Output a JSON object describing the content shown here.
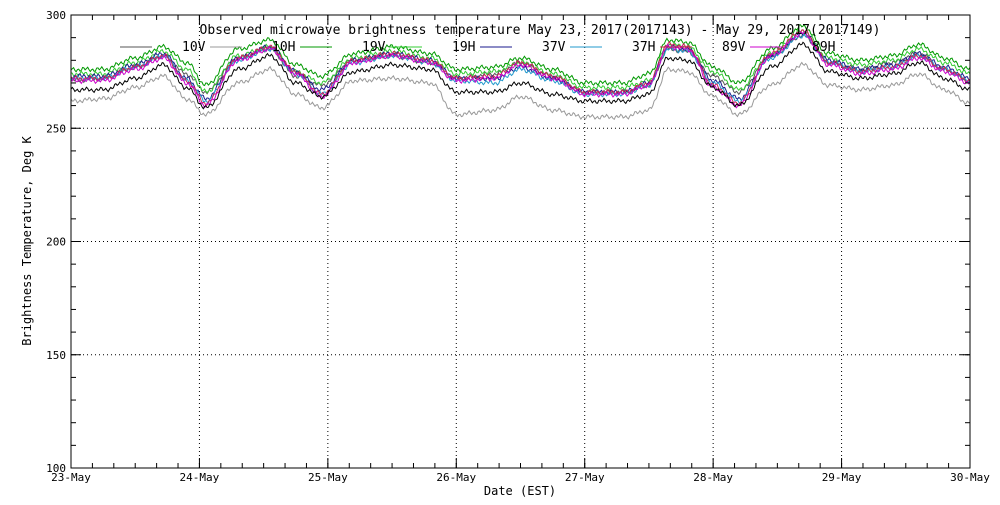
{
  "chart_data": {
    "type": "line",
    "title": "Observed microwave brightness temperature May 23, 2017(2017143) - May 29, 2017(2017149)",
    "xlabel": "Date (EST)",
    "ylabel": "Brightness Temperature, Deg K",
    "xlim": [
      0,
      7
    ],
    "ylim": [
      100,
      300
    ],
    "x_ticks": [
      {
        "value": 0,
        "label": "23-May"
      },
      {
        "value": 1,
        "label": "24-May"
      },
      {
        "value": 2,
        "label": "25-May"
      },
      {
        "value": 3,
        "label": "26-May"
      },
      {
        "value": 4,
        "label": "27-May"
      },
      {
        "value": 5,
        "label": "28-May"
      },
      {
        "value": 6,
        "label": "29-May"
      },
      {
        "value": 7,
        "label": "30-May"
      }
    ],
    "y_ticks": [
      100,
      150,
      200,
      250,
      300
    ],
    "grid": "dotted",
    "legend_position": "top",
    "series": [
      {
        "name": "10V",
        "color": "#555555",
        "x": [
          0,
          0.25,
          0.5,
          0.72,
          0.9,
          1.05,
          1.3,
          1.55,
          1.75,
          1.95,
          2.2,
          2.5,
          2.8,
          3.0,
          3.3,
          3.5,
          3.75,
          4.0,
          4.3,
          4.5,
          4.65,
          4.8,
          5.0,
          5.2,
          5.45,
          5.7,
          5.9,
          6.15,
          6.4,
          6.6,
          6.8,
          7.0
        ],
        "values": [
          271,
          272,
          277,
          282,
          274,
          266,
          281,
          285,
          273,
          269,
          280,
          282,
          279,
          272,
          274,
          279,
          273,
          266,
          266,
          269,
          285,
          284,
          273,
          266,
          282,
          291,
          279,
          276,
          279,
          283,
          276,
          271
        ]
      },
      {
        "name": "10H",
        "color": "#999999",
        "x": [
          0,
          0.25,
          0.5,
          0.72,
          0.9,
          1.05,
          1.3,
          1.55,
          1.75,
          1.95,
          2.2,
          2.5,
          2.8,
          3.0,
          3.3,
          3.5,
          3.75,
          4.0,
          4.3,
          4.5,
          4.65,
          4.8,
          5.0,
          5.2,
          5.45,
          5.7,
          5.9,
          6.15,
          6.4,
          6.6,
          6.8,
          7.0
        ],
        "values": [
          262,
          263,
          268,
          273,
          263,
          256,
          270,
          276,
          265,
          259,
          271,
          272,
          270,
          256,
          258,
          264,
          258,
          255,
          255,
          258,
          276,
          275,
          264,
          256,
          269,
          278,
          269,
          267,
          269,
          274,
          267,
          261
        ]
      },
      {
        "name": "19V",
        "color": "#009900",
        "x": [
          0,
          0.25,
          0.5,
          0.72,
          0.9,
          1.05,
          1.3,
          1.55,
          1.75,
          1.95,
          2.2,
          2.5,
          2.8,
          3.0,
          3.3,
          3.5,
          3.75,
          4.0,
          4.3,
          4.5,
          4.65,
          4.8,
          5.0,
          5.2,
          5.45,
          5.7,
          5.9,
          6.15,
          6.4,
          6.6,
          6.8,
          7.0
        ],
        "values": [
          276,
          276,
          281,
          286,
          279,
          269,
          285,
          289,
          278,
          273,
          283,
          286,
          283,
          276,
          277,
          281,
          276,
          270,
          270,
          274,
          289,
          288,
          277,
          270,
          285,
          295,
          283,
          280,
          282,
          287,
          281,
          276
        ]
      },
      {
        "name": "19H",
        "color": "#33cc33",
        "x": [
          0,
          0.25,
          0.5,
          0.72,
          0.9,
          1.05,
          1.3,
          1.55,
          1.75,
          1.95,
          2.2,
          2.5,
          2.8,
          3.0,
          3.3,
          3.5,
          3.75,
          4.0,
          4.3,
          4.5,
          4.65,
          4.8,
          5.0,
          5.2,
          5.45,
          5.7,
          5.9,
          6.15,
          6.4,
          6.6,
          6.8,
          7.0
        ],
        "values": [
          274,
          274,
          279,
          284,
          276,
          266,
          282,
          286,
          275,
          270,
          281,
          284,
          281,
          274,
          275,
          279,
          274,
          268,
          268,
          271,
          287,
          286,
          275,
          267,
          283,
          293,
          281,
          278,
          280,
          285,
          279,
          274
        ]
      },
      {
        "name": "37V",
        "color": "#1a1a8c",
        "x": [
          0,
          0.25,
          0.5,
          0.72,
          0.9,
          1.05,
          1.3,
          1.55,
          1.75,
          1.95,
          2.2,
          2.5,
          2.8,
          3.0,
          3.3,
          3.5,
          3.75,
          4.0,
          4.3,
          4.5,
          4.65,
          4.8,
          5.0,
          5.2,
          5.45,
          5.7,
          5.9,
          6.15,
          6.4,
          6.6,
          6.8,
          7.0
        ],
        "values": [
          273,
          273,
          278,
          283,
          272,
          263,
          281,
          286,
          275,
          267,
          280,
          283,
          280,
          272,
          272,
          277,
          272,
          266,
          266,
          270,
          286,
          285,
          271,
          263,
          282,
          292,
          280,
          276,
          278,
          283,
          277,
          272
        ]
      },
      {
        "name": "37H",
        "color": "#2299cc",
        "x": [
          0,
          0.25,
          0.5,
          0.72,
          0.9,
          1.05,
          1.3,
          1.55,
          1.75,
          1.95,
          2.2,
          2.5,
          2.8,
          3.0,
          3.3,
          3.5,
          3.75,
          4.0,
          4.3,
          4.5,
          4.65,
          4.8,
          5.0,
          5.2,
          5.45,
          5.7,
          5.9,
          6.15,
          6.4,
          6.6,
          6.8,
          7.0
        ],
        "values": [
          272,
          272,
          277,
          282,
          271,
          262,
          280,
          285,
          274,
          265,
          279,
          282,
          279,
          271,
          270,
          276,
          271,
          265,
          265,
          269,
          285,
          284,
          270,
          262,
          281,
          291,
          279,
          275,
          277,
          282,
          276,
          271
        ]
      },
      {
        "name": "89V",
        "color": "#cc2255",
        "x": [
          0,
          0.25,
          0.5,
          0.72,
          0.9,
          1.05,
          1.3,
          1.55,
          1.75,
          1.95,
          2.2,
          2.5,
          2.8,
          3.0,
          3.3,
          3.5,
          3.75,
          4.0,
          4.3,
          4.5,
          4.65,
          4.8,
          5.0,
          5.2,
          5.45,
          5.7,
          5.9,
          6.15,
          6.4,
          6.6,
          6.8,
          7.0
        ],
        "values": [
          272,
          272,
          277,
          282,
          271,
          261,
          281,
          286,
          275,
          265,
          280,
          283,
          280,
          272,
          273,
          279,
          273,
          266,
          266,
          270,
          287,
          286,
          269,
          261,
          283,
          293,
          279,
          275,
          277,
          282,
          276,
          271
        ]
      },
      {
        "name": "89H",
        "color": "#cc00cc",
        "x": [
          0,
          0.25,
          0.5,
          0.72,
          0.9,
          1.05,
          1.3,
          1.55,
          1.75,
          1.95,
          2.2,
          2.5,
          2.8,
          3.0,
          3.3,
          3.5,
          3.75,
          4.0,
          4.3,
          4.5,
          4.65,
          4.8,
          5.0,
          5.2,
          5.45,
          5.7,
          5.9,
          6.15,
          6.4,
          6.6,
          6.8,
          7.0
        ],
        "values": [
          271,
          271,
          276,
          281,
          270,
          260,
          280,
          285,
          274,
          264,
          279,
          282,
          279,
          271,
          272,
          278,
          272,
          265,
          265,
          269,
          286,
          285,
          268,
          260,
          282,
          292,
          278,
          274,
          276,
          281,
          275,
          270
        ]
      },
      {
        "name": "",
        "color": "#000000",
        "x": [
          0,
          0.25,
          0.5,
          0.72,
          0.9,
          1.05,
          1.3,
          1.55,
          1.75,
          1.95,
          2.2,
          2.5,
          2.8,
          3.0,
          3.3,
          3.5,
          3.75,
          4.0,
          4.3,
          4.5,
          4.65,
          4.8,
          5.0,
          5.2,
          5.45,
          5.7,
          5.9,
          6.15,
          6.4,
          6.6,
          6.8,
          7.0
        ],
        "values": [
          267,
          267,
          272,
          278,
          268,
          259,
          276,
          282,
          270,
          264,
          275,
          278,
          276,
          266,
          266,
          270,
          265,
          262,
          262,
          265,
          281,
          280,
          268,
          260,
          277,
          287,
          275,
          272,
          274,
          279,
          272,
          267
        ]
      }
    ]
  }
}
